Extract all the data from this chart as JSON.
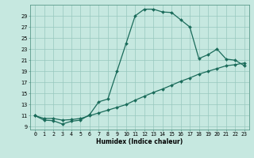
{
  "xlabel": "Humidex (Indice chaleur)",
  "ylabel": "",
  "bg_color": "#c6e8e0",
  "grid_color": "#98c8be",
  "line_color": "#1a6b5a",
  "line1_x": [
    0,
    1,
    2,
    3,
    4,
    5,
    6,
    7,
    8,
    9,
    10,
    11,
    12,
    13,
    14,
    15,
    16,
    17,
    18,
    19,
    20,
    21,
    22,
    23
  ],
  "line1_y": [
    11,
    10.2,
    10.1,
    9.5,
    10.0,
    10.2,
    11.2,
    13.5,
    14.0,
    19.0,
    24.0,
    29.0,
    30.2,
    30.2,
    29.7,
    29.6,
    28.3,
    27.0,
    21.3,
    22.0,
    23.0,
    21.2,
    21.0,
    20.0
  ],
  "line2_x": [
    0,
    1,
    2,
    3,
    4,
    5,
    6,
    7,
    8,
    9,
    10,
    11,
    12,
    13,
    14,
    15,
    16,
    17,
    18,
    19,
    20,
    21,
    22,
    23
  ],
  "line2_y": [
    11,
    10.5,
    10.5,
    10.2,
    10.3,
    10.5,
    11.0,
    11.5,
    12.0,
    12.5,
    13.0,
    13.8,
    14.5,
    15.2,
    15.8,
    16.5,
    17.2,
    17.8,
    18.5,
    19.0,
    19.5,
    20.0,
    20.2,
    20.5
  ],
  "xlim": [
    -0.5,
    23.5
  ],
  "ylim": [
    8.5,
    31
  ],
  "yticks": [
    9,
    11,
    13,
    15,
    17,
    19,
    21,
    23,
    25,
    27,
    29
  ],
  "xticks": [
    0,
    1,
    2,
    3,
    4,
    5,
    6,
    7,
    8,
    9,
    10,
    11,
    12,
    13,
    14,
    15,
    16,
    17,
    18,
    19,
    20,
    21,
    22,
    23
  ],
  "marker": "D",
  "markersize": 2.0,
  "linewidth": 0.9,
  "axis_fontsize": 5.5,
  "tick_fontsize": 4.8
}
